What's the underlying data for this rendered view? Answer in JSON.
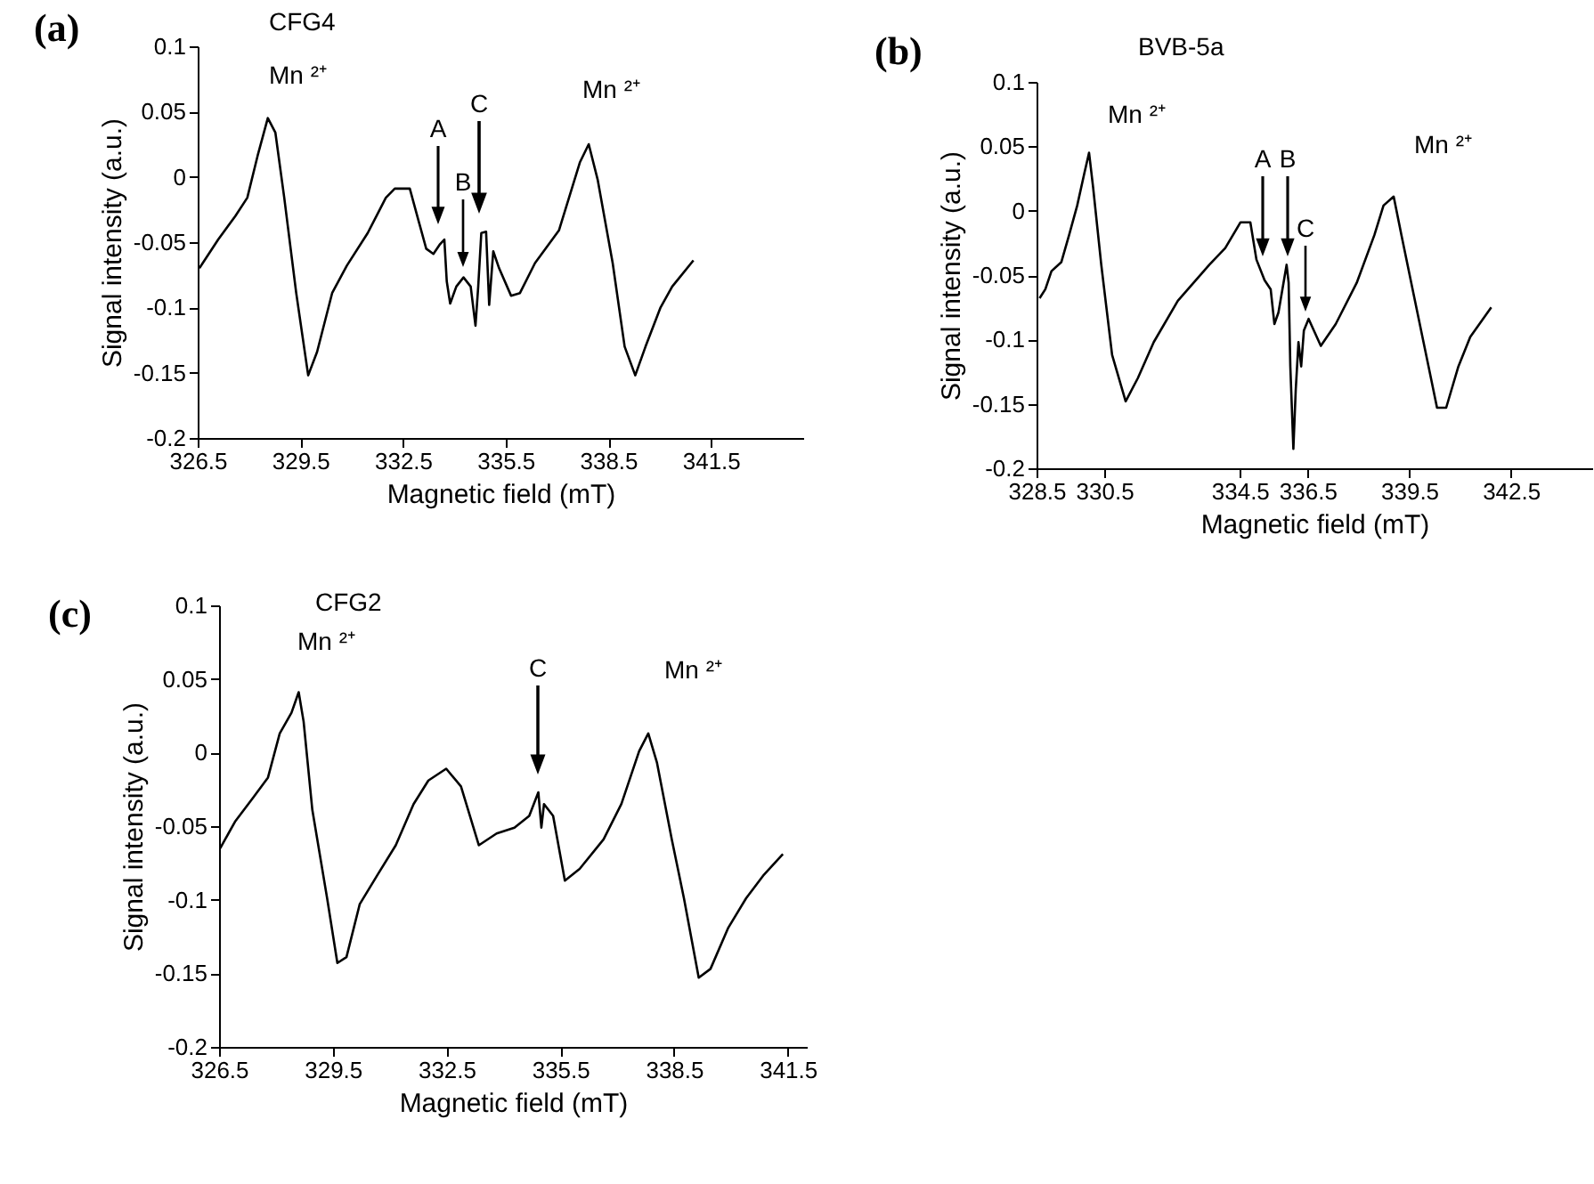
{
  "chart_data": [
    {
      "type": "line",
      "title": "(a)",
      "xlabel": "Magnetic field (mT)",
      "ylabel": "Signal intensity (a.u.)",
      "color": "#000000",
      "xlim": [
        326.5,
        344.2
      ],
      "xticks": [
        326.5,
        329.5,
        332.5,
        335.5,
        338.5,
        341.5
      ],
      "ylim": [
        -0.2,
        0.1
      ],
      "yticks": [
        -0.2,
        -0.15,
        -0.1,
        -0.05,
        0,
        0.05,
        0.1
      ],
      "x": [
        326.55,
        327.1,
        327.6,
        327.95,
        328.25,
        328.55,
        328.77,
        329.03,
        329.38,
        329.73,
        329.99,
        330.43,
        330.86,
        331.47,
        332.0,
        332.26,
        332.7,
        332.96,
        333.18,
        333.39,
        333.57,
        333.71,
        333.78,
        333.88,
        334.06,
        334.27,
        334.48,
        334.62,
        334.7,
        334.79,
        334.93,
        335.02,
        335.14,
        335.31,
        335.66,
        335.92,
        336.36,
        337.06,
        337.67,
        337.93,
        338.19,
        338.63,
        338.98,
        339.29,
        339.59,
        340.03,
        340.37,
        340.99
      ],
      "values": [
        -0.07,
        -0.048,
        -0.03,
        -0.016,
        0.016,
        0.045,
        0.034,
        -0.016,
        -0.089,
        -0.152,
        -0.134,
        -0.089,
        -0.068,
        -0.043,
        -0.016,
        -0.009,
        -0.009,
        -0.034,
        -0.055,
        -0.059,
        -0.052,
        -0.048,
        -0.08,
        -0.097,
        -0.084,
        -0.077,
        -0.084,
        -0.114,
        -0.084,
        -0.043,
        -0.042,
        -0.098,
        -0.057,
        -0.07,
        -0.091,
        -0.089,
        -0.066,
        -0.041,
        0.011,
        0.025,
        -0.002,
        -0.066,
        -0.13,
        -0.152,
        -0.13,
        -0.1,
        -0.084,
        -0.064
      ],
      "annotations": [
        "CFG4",
        "Mn ²⁺",
        "Mn ²⁺",
        "A",
        "B",
        "C"
      ]
    },
    {
      "type": "line",
      "title": "(b)",
      "xlabel": "Magnetic field (mT)",
      "ylabel": "Signal intensity (a.u.)",
      "color": "#000000",
      "xlim": [
        328.5,
        344.9
      ],
      "xticks": [
        328.5,
        330.5,
        334.5,
        336.5,
        339.5,
        342.5
      ],
      "ylim": [
        -0.2,
        0.1
      ],
      "yticks": [
        -0.2,
        -0.15,
        -0.1,
        -0.05,
        0,
        0.05,
        0.1
      ],
      "x": [
        328.59,
        328.76,
        328.94,
        329.23,
        329.46,
        329.7,
        329.91,
        330.05,
        330.17,
        330.41,
        330.73,
        331.13,
        331.49,
        331.96,
        332.67,
        333.6,
        334.07,
        334.52,
        334.81,
        334.99,
        335.23,
        335.41,
        335.52,
        335.64,
        335.88,
        335.94,
        335.99,
        336.08,
        336.15,
        336.23,
        336.31,
        336.39,
        336.53,
        336.89,
        337.33,
        337.95,
        338.47,
        338.74,
        339.04,
        339.27,
        339.63,
        340.07,
        340.32,
        340.59,
        340.95,
        341.3,
        341.92
      ],
      "values": [
        -0.068,
        -0.061,
        -0.047,
        -0.04,
        -0.019,
        0.004,
        0.029,
        0.045,
        0.018,
        -0.042,
        -0.112,
        -0.148,
        -0.13,
        -0.102,
        -0.07,
        -0.042,
        -0.029,
        -0.009,
        -0.009,
        -0.038,
        -0.054,
        -0.061,
        -0.088,
        -0.079,
        -0.042,
        -0.056,
        -0.121,
        -0.185,
        -0.139,
        -0.102,
        -0.121,
        -0.093,
        -0.084,
        -0.105,
        -0.088,
        -0.056,
        -0.019,
        0.004,
        0.011,
        -0.019,
        -0.065,
        -0.121,
        -0.153,
        -0.153,
        -0.121,
        -0.098,
        -0.075
      ],
      "annotations": [
        "BVB-5a",
        "Mn ²⁺",
        "Mn ²⁺",
        "A",
        "B",
        "C"
      ]
    },
    {
      "type": "line",
      "title": "(c)",
      "xlabel": "Magnetic field (mT)",
      "ylabel": "Signal intensity (a.u.)",
      "color": "#000000",
      "xlim": [
        326.5,
        342
      ],
      "xticks": [
        326.5,
        329.5,
        332.5,
        335.5,
        338.5,
        341.5
      ],
      "ylim": [
        -0.2,
        0.1
      ],
      "yticks": [
        -0.2,
        -0.15,
        -0.1,
        -0.05,
        0,
        0.05,
        0.1
      ],
      "x": [
        326.53,
        326.92,
        327.39,
        327.79,
        328.1,
        328.41,
        328.6,
        328.73,
        328.96,
        329.35,
        329.62,
        329.86,
        330.21,
        330.68,
        331.16,
        331.63,
        332.02,
        332.49,
        332.88,
        333.35,
        333.82,
        334.29,
        334.68,
        334.92,
        335.0,
        335.07,
        335.31,
        335.62,
        336.01,
        336.64,
        337.11,
        337.58,
        337.82,
        338.05,
        338.44,
        338.76,
        339.15,
        339.46,
        339.93,
        340.4,
        340.87,
        341.37
      ],
      "values": [
        -0.065,
        -0.047,
        -0.031,
        -0.017,
        0.013,
        0.027,
        0.041,
        0.021,
        -0.039,
        -0.099,
        -0.143,
        -0.139,
        -0.103,
        -0.083,
        -0.063,
        -0.035,
        -0.019,
        -0.011,
        -0.023,
        -0.063,
        -0.055,
        -0.051,
        -0.043,
        -0.027,
        -0.051,
        -0.035,
        -0.043,
        -0.087,
        -0.079,
        -0.059,
        -0.035,
        0.001,
        0.013,
        -0.007,
        -0.059,
        -0.099,
        -0.153,
        -0.147,
        -0.119,
        -0.099,
        -0.083,
        -0.069
      ],
      "annotations": [
        "CFG2",
        "Mn ²⁺",
        "Mn ²⁺",
        "C"
      ]
    }
  ]
}
